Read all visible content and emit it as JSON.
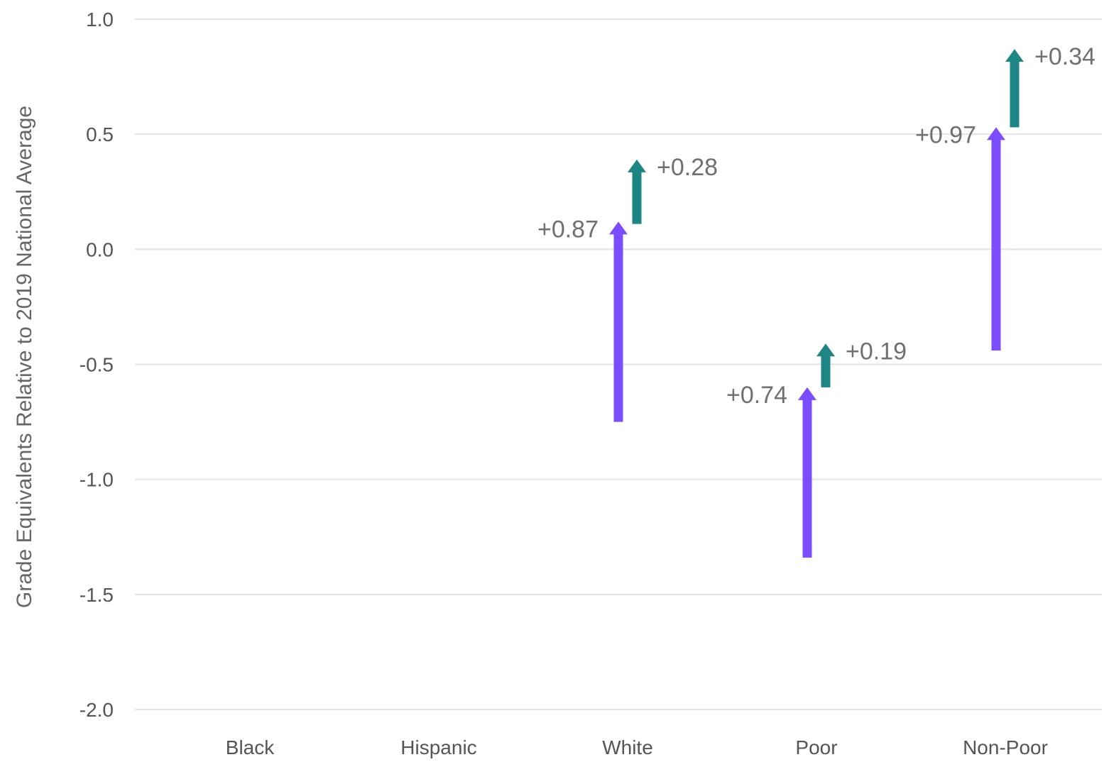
{
  "chart_data": {
    "type": "arrow",
    "ylabel": "Grade Equivalents Relative to 2019 National Average",
    "ylim": [
      -2.0,
      1.0
    ],
    "yticks": [
      1.0,
      0.5,
      0.0,
      -0.5,
      -1.0,
      -1.5,
      -2.0
    ],
    "ytick_labels": [
      "1.0",
      "0.5",
      "0.0",
      "-0.5",
      "-1.0",
      "-1.5",
      "-2.0"
    ],
    "categories": [
      "Black",
      "Hispanic",
      "White",
      "Poor",
      "Non-Poor"
    ],
    "grid": true,
    "colors": {
      "first": "#7b4dff",
      "second": "#1e8585"
    },
    "series": [
      {
        "color": "#7b4dff",
        "arrows": [
          {
            "category": "White",
            "start": -0.75,
            "end": 0.12,
            "label": "+0.87"
          },
          {
            "category": "Poor",
            "start": -1.34,
            "end": -0.6,
            "label": "+0.74"
          },
          {
            "category": "Non-Poor",
            "start": -0.44,
            "end": 0.53,
            "label": "+0.97"
          }
        ]
      },
      {
        "color": "#1e8585",
        "arrows": [
          {
            "category": "White",
            "start": 0.11,
            "end": 0.39,
            "label": "+0.28"
          },
          {
            "category": "Poor",
            "start": -0.6,
            "end": -0.41,
            "label": "+0.19"
          },
          {
            "category": "Non-Poor",
            "start": 0.53,
            "end": 0.87,
            "label": "+0.34"
          }
        ]
      }
    ]
  }
}
